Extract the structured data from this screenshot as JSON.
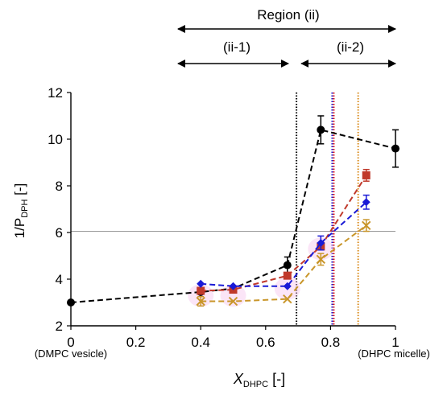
{
  "chart_data": {
    "type": "scatter",
    "title": "",
    "xlabel": {
      "main": "X",
      "sub": "DHPC",
      "unit": " [-]"
    },
    "ylabel": {
      "main": "1/P",
      "sub": "DPH",
      "unit": " [-]"
    },
    "xlim": [
      0,
      1
    ],
    "ylim": [
      2,
      12
    ],
    "x_ticks": [
      0,
      0.2,
      0.4,
      0.6,
      0.8,
      1
    ],
    "x_tick_labels": [
      "0",
      "0.2",
      "0.4",
      "0.6",
      "0.8",
      "1"
    ],
    "y_ticks": [
      2,
      4,
      6,
      8,
      10,
      12
    ],
    "y_tick_labels": [
      "2",
      "4",
      "6",
      "8",
      "10",
      "12"
    ],
    "annotations": {
      "left_end": "(DMPC vesicle)",
      "right_end": "(DHPC micelle)",
      "region_main": {
        "label": "Region (ii)",
        "x_from": 0.33,
        "x_to": 1.0
      },
      "region_sub1": {
        "label": "(ii-1)",
        "x_from": 0.33,
        "x_to": 0.67
      },
      "region_sub2": {
        "label": "(ii-2)",
        "x_from": 0.71,
        "x_to": 1.0
      }
    },
    "reference_line": {
      "y": 6.05,
      "color": "#999999"
    },
    "vertical_lines": [
      {
        "x": 0.695,
        "color": "#000000"
      },
      {
        "x": 0.805,
        "color": "#1a1ad6"
      },
      {
        "x": 0.81,
        "color": "#e01010"
      },
      {
        "x": 0.885,
        "color": "#d98a1a"
      }
    ],
    "series": [
      {
        "color": "#000000",
        "marker": "circle",
        "points": [
          {
            "x": 0,
            "y": 3.0
          },
          {
            "x": 0.4,
            "y": 3.45
          },
          {
            "x": 0.5,
            "y": 3.6
          },
          {
            "x": 0.667,
            "y": 4.6,
            "err": 0.35
          },
          {
            "x": 0.77,
            "y": 10.4,
            "err": 0.6
          },
          {
            "x": 1.0,
            "y": 9.6,
            "err": 0.8
          }
        ]
      },
      {
        "color": "#c0392b",
        "marker": "square",
        "points": [
          {
            "x": 0.4,
            "y": 3.5
          },
          {
            "x": 0.5,
            "y": 3.55
          },
          {
            "x": 0.667,
            "y": 4.15
          },
          {
            "x": 0.77,
            "y": 5.4
          },
          {
            "x": 0.91,
            "y": 8.45,
            "err": 0.25
          }
        ]
      },
      {
        "color": "#1a1ad6",
        "marker": "diamond",
        "points": [
          {
            "x": 0.4,
            "y": 3.8
          },
          {
            "x": 0.5,
            "y": 3.7
          },
          {
            "x": 0.667,
            "y": 3.7
          },
          {
            "x": 0.77,
            "y": 5.55,
            "err": 0.3
          },
          {
            "x": 0.91,
            "y": 7.3,
            "err": 0.3
          }
        ]
      },
      {
        "color": "#c9962a",
        "marker": "cross",
        "points": [
          {
            "x": 0.4,
            "y": 3.05,
            "err": 0.2
          },
          {
            "x": 0.5,
            "y": 3.05
          },
          {
            "x": 0.667,
            "y": 3.15
          },
          {
            "x": 0.77,
            "y": 4.85,
            "err": 0.25
          },
          {
            "x": 0.91,
            "y": 6.3,
            "err": 0.25
          }
        ]
      }
    ]
  }
}
